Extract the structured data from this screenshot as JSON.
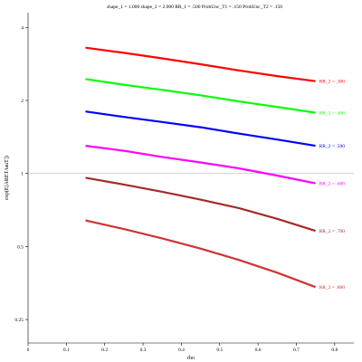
{
  "chart_data": {
    "type": "line",
    "title": "shape_1 = 1.000  shape_2 = 2.000  RR_1 = .500  ProbUnc_T1 = .150  ProbUnc_T2 = .150",
    "xlabel": "rho",
    "ylabel": "exp(E[ARET/tauT])",
    "xlim": [
      0,
      0.85
    ],
    "ylim": [
      0.2,
      4.6
    ],
    "yscale": "log",
    "x_ticks": [
      0,
      0.1,
      0.2,
      0.3,
      0.4,
      0.5,
      0.6,
      0.7,
      0.8
    ],
    "x_tick_labels": [
      "0",
      "0.1",
      "0.2",
      "0.3",
      "0.4",
      "0.5",
      "0.6",
      "0.7",
      "0.8"
    ],
    "y_ticks": [
      0.25,
      0.5,
      1,
      2,
      4
    ],
    "y_tick_labels": [
      "0.25",
      "0.5",
      "1",
      "2",
      "4"
    ],
    "reference_line_y": 1,
    "x": [
      0.15,
      0.25,
      0.35,
      0.45,
      0.55,
      0.65,
      0.75
    ],
    "series": [
      {
        "label": "RR_2 = .300",
        "color": "#ff0000",
        "values": [
          3.3,
          3.14,
          2.98,
          2.82,
          2.66,
          2.52,
          2.4
        ]
      },
      {
        "label": "RR_2 = .400",
        "color": "#00ff00",
        "values": [
          2.45,
          2.32,
          2.21,
          2.1,
          1.98,
          1.88,
          1.78
        ]
      },
      {
        "label": "RR_2 = .500",
        "color": "#0000ff",
        "values": [
          1.8,
          1.71,
          1.63,
          1.55,
          1.46,
          1.38,
          1.3
        ]
      },
      {
        "label": "RR_2 = .600",
        "color": "#ff00ff",
        "values": [
          1.3,
          1.24,
          1.17,
          1.11,
          1.05,
          0.98,
          0.91
        ]
      },
      {
        "label": "RR_2 = .700",
        "color": "#a52a2a",
        "values": [
          0.96,
          0.9,
          0.84,
          0.78,
          0.72,
          0.65,
          0.58
        ]
      },
      {
        "label": "RR_2 = .800",
        "color": "#cd3333",
        "values": [
          0.64,
          0.59,
          0.54,
          0.49,
          0.44,
          0.39,
          0.34
        ]
      }
    ]
  }
}
